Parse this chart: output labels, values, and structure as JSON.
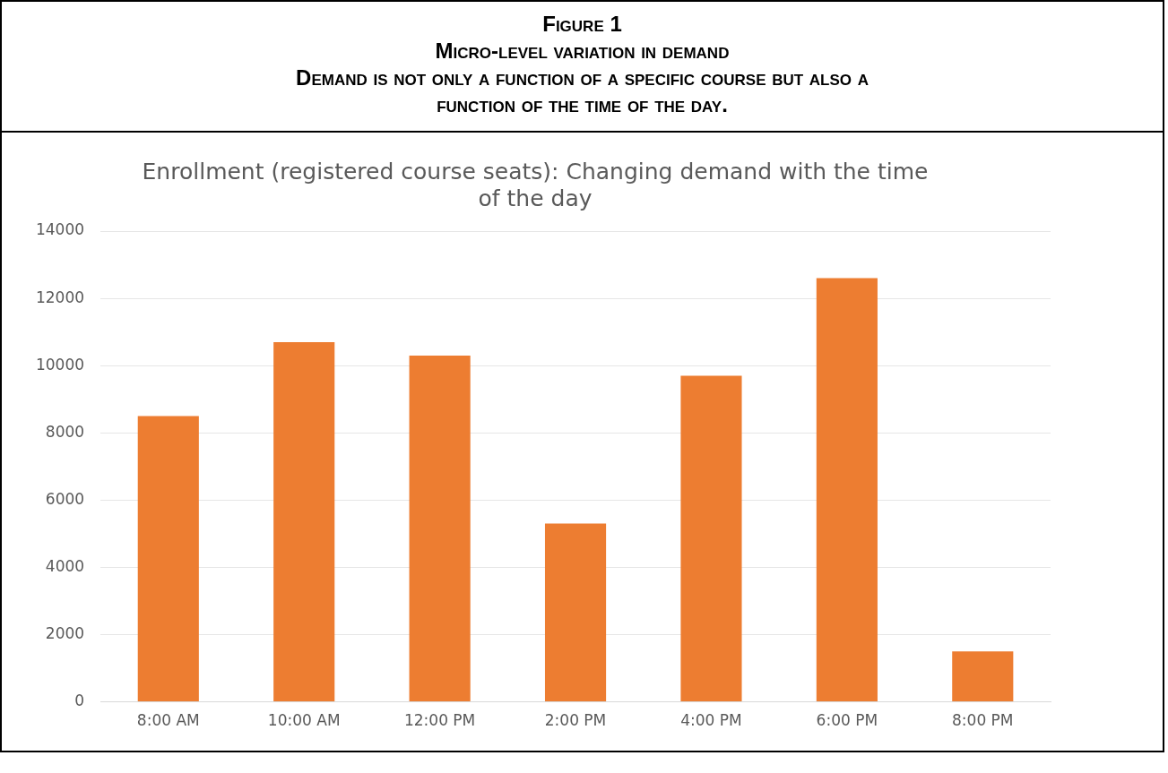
{
  "chart_data": {
    "type": "bar",
    "title": "Enrollment (registered course seats): Changing demand with the time of the day",
    "annotations": [
      "Figure 1",
      "Micro-level variation in demand",
      "Demand is not only a function of a specific course but also a function of the time of the day."
    ],
    "categories": [
      "8:00 AM",
      "10:00 AM",
      "12:00 PM",
      "2:00 PM",
      "4:00 PM",
      "6:00 PM",
      "8:00 PM"
    ],
    "values": [
      8500,
      10700,
      10300,
      5300,
      9700,
      12600,
      1500
    ],
    "color": "#ed7d31",
    "ylim": [
      0,
      14000
    ],
    "yticks": [
      0,
      2000,
      4000,
      6000,
      8000,
      10000,
      12000,
      14000
    ],
    "grid": "y",
    "legend": false
  }
}
